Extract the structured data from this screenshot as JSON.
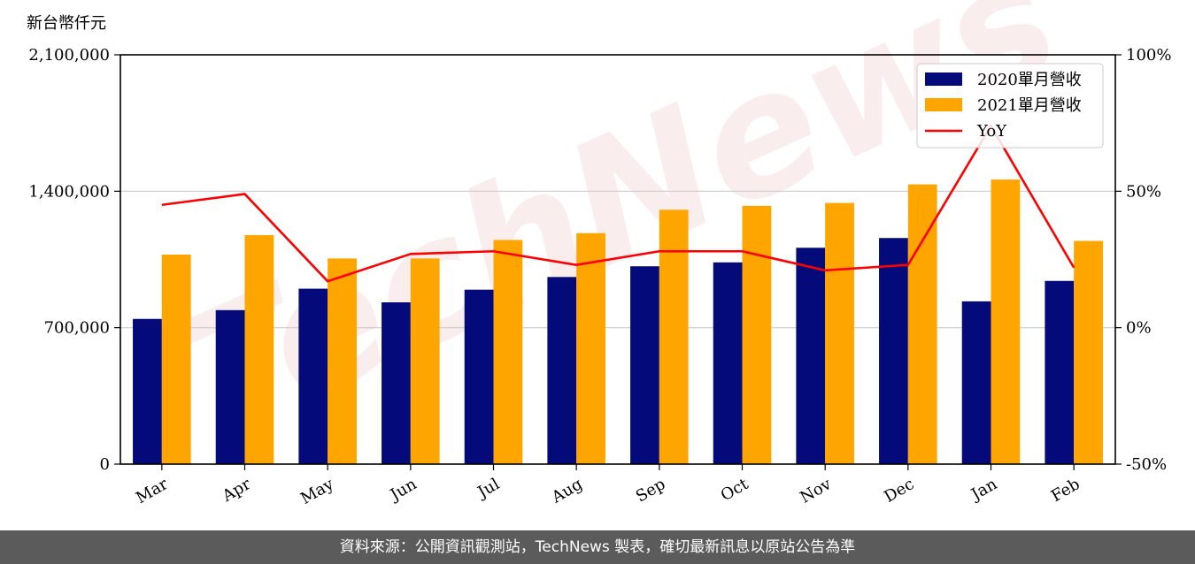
{
  "watermark": "TechNews",
  "footer": "資料來源：公開資訊觀測站，TechNews 製表，確切最新訊息以原站公告為準",
  "colors": {
    "series2020": "#050a7a",
    "series2021": "#ffa500",
    "yoy": "#ff0000",
    "footer_bg": "#5b5b5b"
  },
  "chart_data": {
    "type": "bar",
    "categories": [
      "Mar",
      "Apr",
      "May",
      "Jun",
      "Jul",
      "Aug",
      "Sep",
      "Oct",
      "Nov",
      "Dec",
      "Jan",
      "Feb"
    ],
    "series": [
      {
        "name": "2020單月營收",
        "values": [
          745000,
          790000,
          900000,
          830000,
          895000,
          960000,
          1015000,
          1035000,
          1110000,
          1160000,
          835000,
          940000
        ]
      },
      {
        "name": "2021單月營收",
        "values": [
          1075000,
          1175000,
          1055000,
          1055000,
          1150000,
          1185000,
          1305000,
          1325000,
          1340000,
          1435000,
          1460000,
          1145000
        ]
      }
    ],
    "line_series": {
      "name": "YoY",
      "values": [
        45,
        49,
        17,
        27,
        28,
        23,
        28,
        28,
        21,
        23,
        74,
        22
      ]
    },
    "ylabel": "新台幣仟元",
    "ylim": [
      0,
      2100000
    ],
    "y_ticks": [
      "0",
      "700,000",
      "1,400,000",
      "2,100,000"
    ],
    "y2lim": [
      -50,
      100
    ],
    "y2_ticks": [
      "-50%",
      "0%",
      "50%",
      "100%"
    ],
    "grid": true,
    "legend": "top-right"
  }
}
